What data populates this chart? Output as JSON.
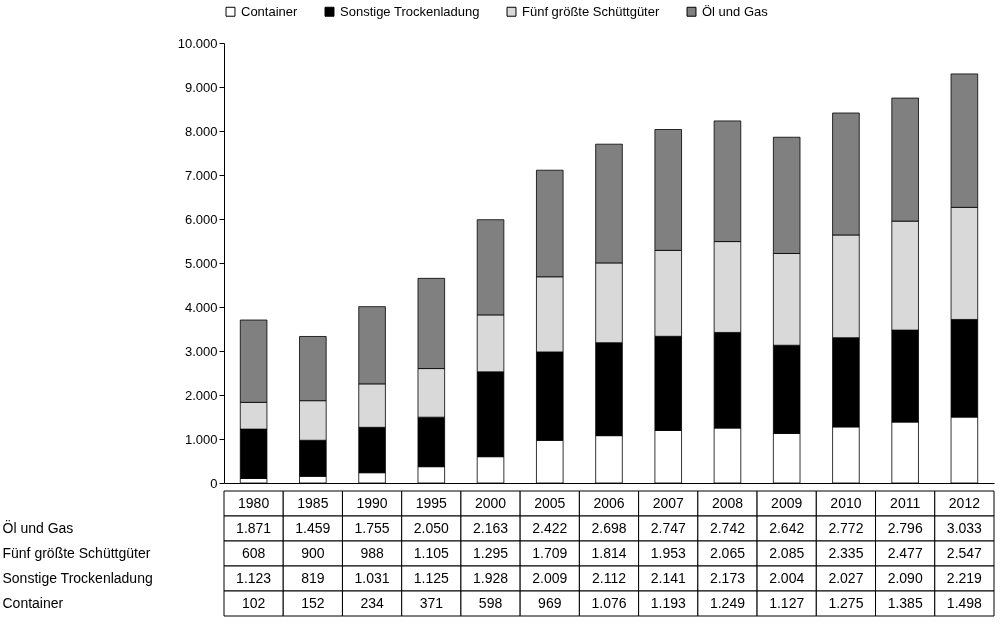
{
  "chart_data": {
    "type": "bar",
    "stacked": true,
    "categories": [
      "1980",
      "1985",
      "1990",
      "1995",
      "2000",
      "2005",
      "2006",
      "2007",
      "2008",
      "2009",
      "2010",
      "2011",
      "2012"
    ],
    "series": [
      {
        "name": "Container",
        "color": "#ffffff",
        "values": [
          102,
          152,
          234,
          371,
          598,
          969,
          1076,
          1193,
          1249,
          1127,
          1275,
          1385,
          1498
        ],
        "value_labels": [
          "102",
          "152",
          "234",
          "371",
          "598",
          "969",
          "1.076",
          "1.193",
          "1.249",
          "1.127",
          "1.275",
          "1.385",
          "1.498"
        ]
      },
      {
        "name": "Sonstige Trockenladung",
        "color": "#000000",
        "values": [
          1123,
          819,
          1031,
          1125,
          1928,
          2009,
          2112,
          2141,
          2173,
          2004,
          2027,
          2090,
          2219
        ],
        "value_labels": [
          "1.123",
          "819",
          "1.031",
          "1.125",
          "1.928",
          "2.009",
          "2.112",
          "2.141",
          "2.173",
          "2.004",
          "2.027",
          "2.090",
          "2.219"
        ]
      },
      {
        "name": "Fünf größte Schüttgüter",
        "color": "#d9d9d9",
        "values": [
          608,
          900,
          988,
          1105,
          1295,
          1709,
          1814,
          1953,
          2065,
          2085,
          2335,
          2477,
          2547
        ],
        "value_labels": [
          "608",
          "900",
          "988",
          "1.105",
          "1.295",
          "1.709",
          "1.814",
          "1.953",
          "2.065",
          "2.085",
          "2.335",
          "2.477",
          "2.547"
        ]
      },
      {
        "name": "Öl und Gas",
        "color": "#808080",
        "values": [
          1871,
          1459,
          1755,
          2050,
          2163,
          2422,
          2698,
          2747,
          2742,
          2642,
          2772,
          2796,
          3033
        ],
        "value_labels": [
          "1.871",
          "1.459",
          "1.755",
          "2.050",
          "2.163",
          "2.422",
          "2.698",
          "2.747",
          "2.742",
          "2.642",
          "2.772",
          "2.796",
          "3.033"
        ]
      }
    ],
    "ylim": [
      0,
      10000
    ],
    "yticks": [
      0,
      {
        "value": 1000,
        "label": "1.000"
      },
      {
        "value": 2000,
        "label": "2.000"
      },
      {
        "value": 3000,
        "label": "3.000"
      },
      {
        "value": 4000,
        "label": "4.000"
      },
      {
        "value": 5000,
        "label": "5.000"
      },
      {
        "value": 6000,
        "label": "6.000"
      },
      {
        "value": 7000,
        "label": "7.000"
      },
      {
        "value": 8000,
        "label": "8.000"
      },
      {
        "value": 9000,
        "label": "9.000"
      },
      {
        "value": 10000,
        "label": "10.000"
      }
    ],
    "grid": false,
    "legend": "top"
  }
}
